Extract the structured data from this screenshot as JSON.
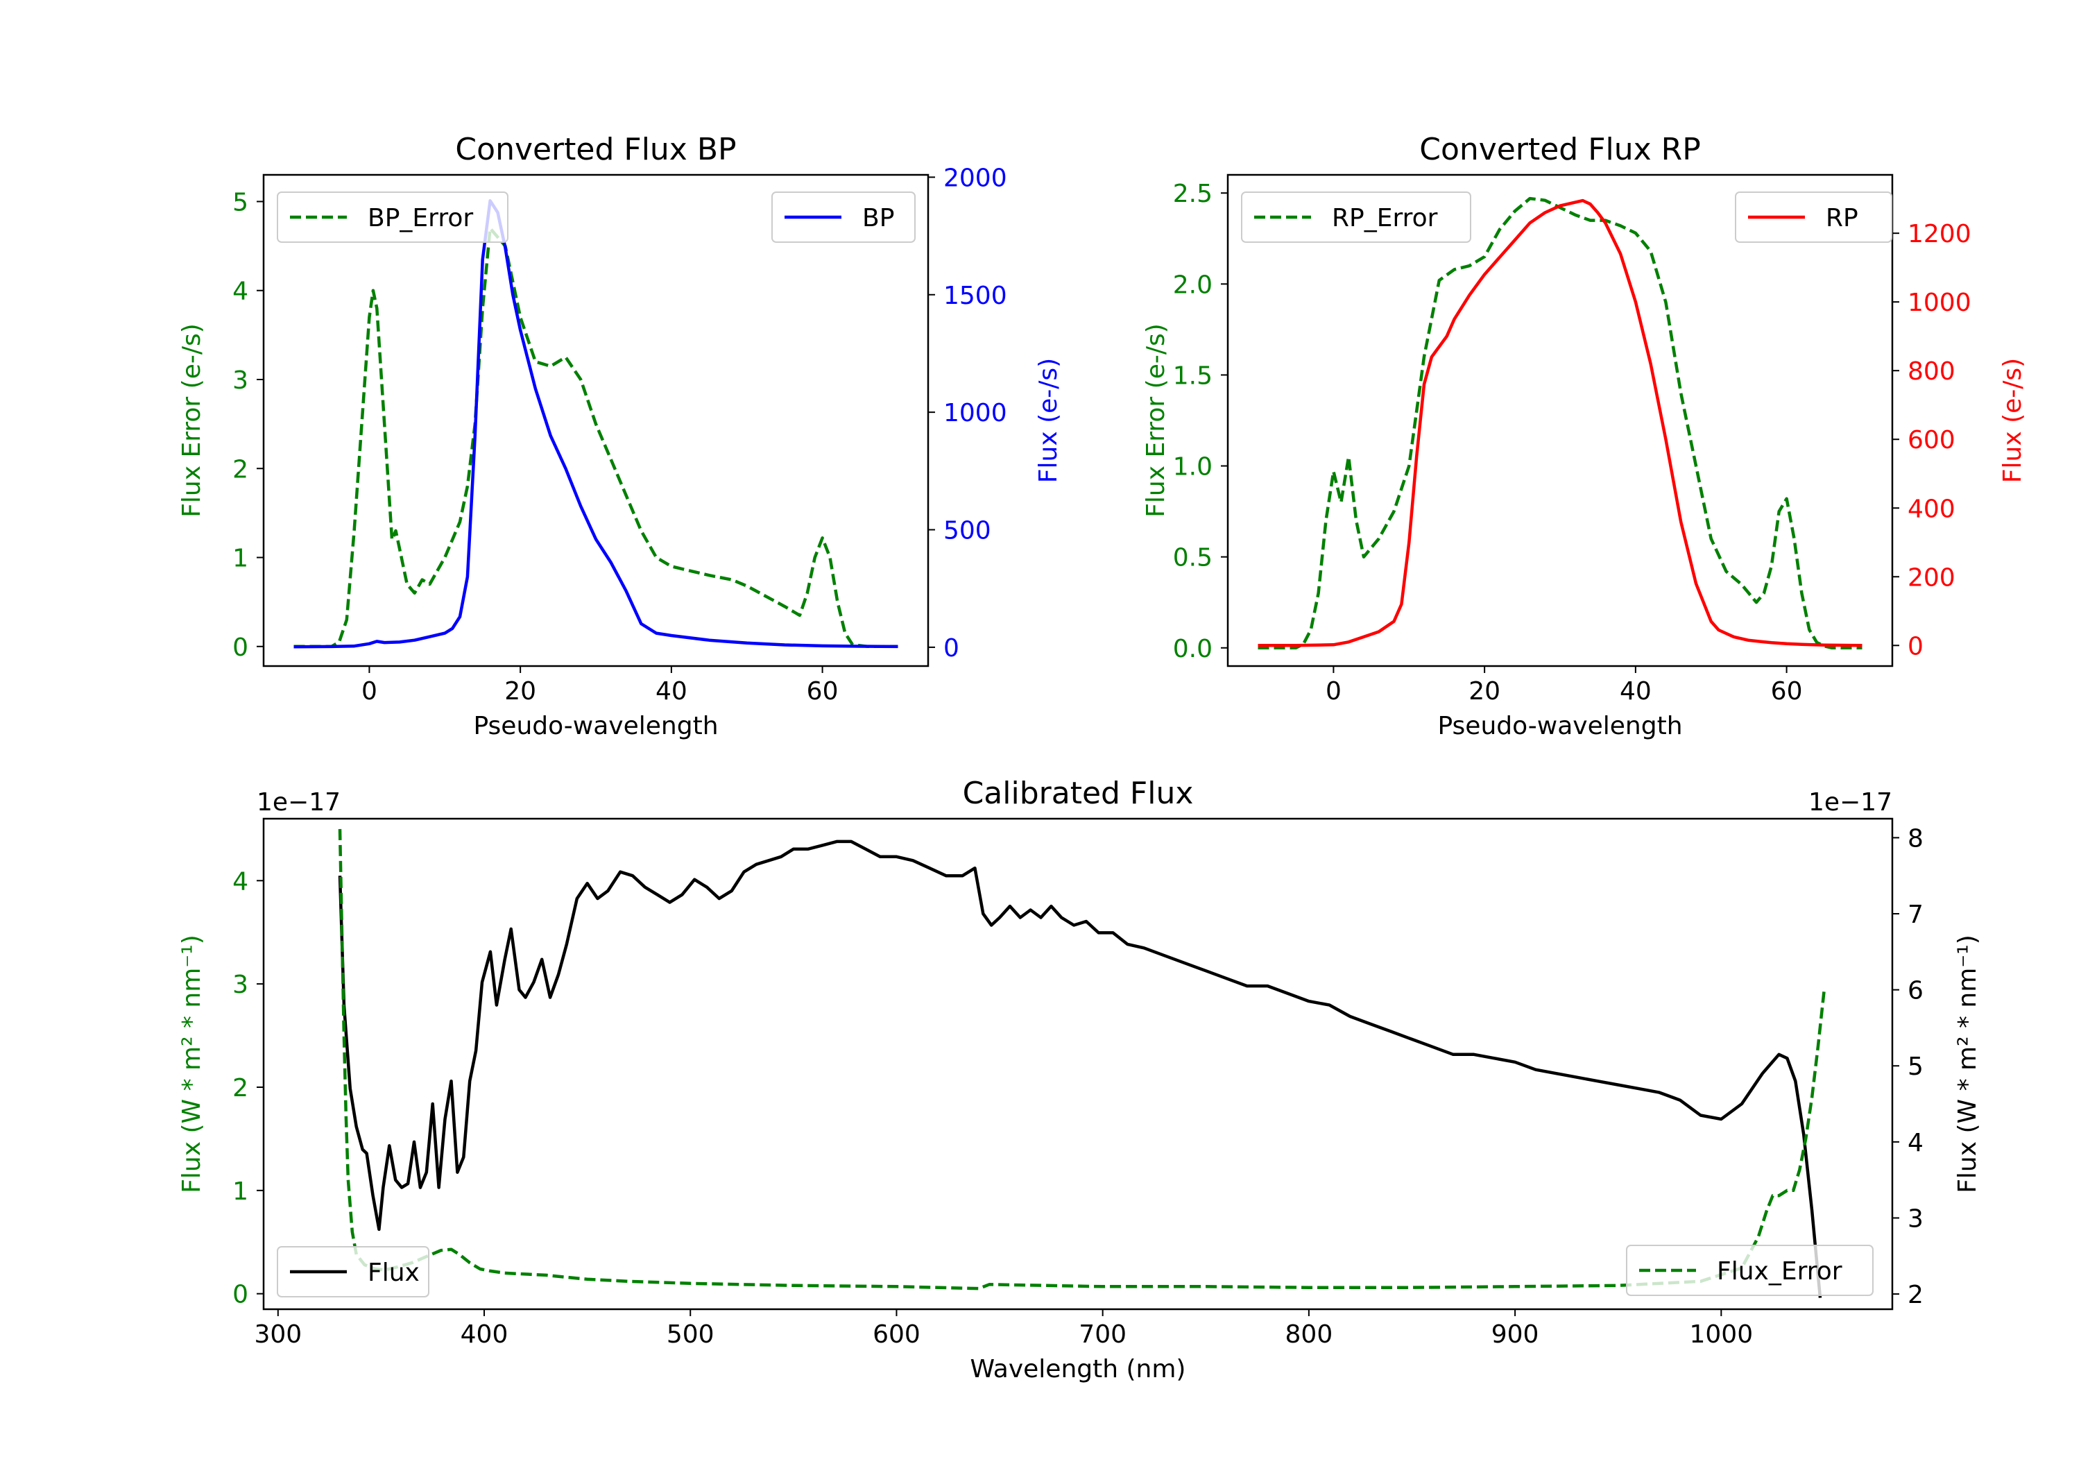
{
  "colors": {
    "bp": "#0000ff",
    "rp": "#ff0000",
    "error": "#008000",
    "calib": "#000000"
  },
  "chart_data": [
    {
      "type": "line",
      "title": "Converted Flux BP",
      "xlabel": "Pseudo-wavelength",
      "xlim": [
        -14,
        74
      ],
      "xticks": [
        0,
        20,
        40,
        60
      ],
      "y_left": {
        "label": "Flux Error (e-/s)",
        "lim": [
          -0.22,
          5.3
        ],
        "ticks": [
          0,
          1,
          2,
          3,
          4,
          5
        ],
        "color": "#008000"
      },
      "y_right": {
        "label": "Flux (e-/s)",
        "lim": [
          -80,
          2010
        ],
        "ticks": [
          0,
          500,
          1000,
          1500,
          2000
        ],
        "color": "#0000ff"
      },
      "series": [
        {
          "name": "BP_Error",
          "axis": "left",
          "style": "dashed",
          "color": "#008000",
          "x": [
            -10,
            -5,
            -4,
            -3,
            -2,
            -1,
            0,
            0.5,
            1,
            2,
            3,
            3.5,
            4,
            5,
            6,
            7,
            8,
            10,
            12,
            13,
            14,
            15,
            16,
            18,
            20,
            22,
            24,
            26,
            28,
            30,
            32,
            34,
            36,
            38,
            40,
            45,
            48,
            50,
            55,
            57,
            58,
            59,
            60,
            61,
            62,
            63,
            64,
            66,
            68,
            70
          ],
          "values": [
            0,
            0,
            0.05,
            0.3,
            1.3,
            2.5,
            3.7,
            4.0,
            3.8,
            2.5,
            1.2,
            1.3,
            1.1,
            0.7,
            0.6,
            0.75,
            0.7,
            1.0,
            1.4,
            1.8,
            2.5,
            3.8,
            4.7,
            4.5,
            3.7,
            3.2,
            3.15,
            3.25,
            3.0,
            2.5,
            2.1,
            1.7,
            1.3,
            1.0,
            0.9,
            0.8,
            0.75,
            0.68,
            0.45,
            0.35,
            0.6,
            1.0,
            1.22,
            1.0,
            0.5,
            0.15,
            0.02,
            0,
            0,
            0
          ]
        },
        {
          "name": "BP",
          "axis": "right",
          "style": "solid",
          "color": "#0000ff",
          "x": [
            -10,
            -5,
            -2,
            0,
            1,
            2,
            4,
            6,
            8,
            10,
            11,
            12,
            13,
            14,
            15,
            16,
            17,
            18,
            19,
            20,
            22,
            24,
            26,
            28,
            30,
            32,
            34,
            35,
            36,
            38,
            40,
            45,
            50,
            55,
            60,
            65,
            70
          ],
          "values": [
            2,
            3,
            5,
            15,
            25,
            20,
            22,
            30,
            45,
            60,
            80,
            130,
            300,
            900,
            1650,
            1900,
            1850,
            1700,
            1500,
            1350,
            1100,
            900,
            760,
            600,
            460,
            360,
            240,
            170,
            100,
            60,
            50,
            30,
            18,
            10,
            6,
            4,
            3
          ]
        }
      ]
    },
    {
      "type": "line",
      "title": "Converted Flux RP",
      "xlabel": "Pseudo-wavelength",
      "xlim": [
        -14,
        74
      ],
      "xticks": [
        0,
        20,
        40,
        60
      ],
      "y_left": {
        "label": "Flux Error (e-/s)",
        "lim": [
          -0.1,
          2.6
        ],
        "ticks": [
          0.0,
          0.5,
          1.0,
          1.5,
          2.0,
          2.5
        ],
        "color": "#008000"
      },
      "y_right": {
        "label": "Flux (e-/s)",
        "lim": [
          -60,
          1370
        ],
        "ticks": [
          0,
          200,
          400,
          600,
          800,
          1000,
          1200
        ],
        "color": "#ff0000"
      },
      "series": [
        {
          "name": "RP_Error",
          "axis": "left",
          "style": "dashed",
          "color": "#008000",
          "x": [
            -10,
            -5,
            -4,
            -3,
            -2,
            -1,
            0,
            1,
            2,
            3,
            4,
            5,
            6,
            8,
            10,
            12,
            14,
            16,
            18,
            20,
            22,
            24,
            26,
            28,
            30,
            32,
            34,
            36,
            38,
            40,
            42,
            44,
            46,
            48,
            50,
            52,
            54,
            55,
            56,
            57,
            58,
            59,
            60,
            61,
            62,
            63,
            64,
            65,
            66,
            68,
            70
          ],
          "values": [
            0,
            0,
            0.02,
            0.1,
            0.3,
            0.7,
            0.97,
            0.8,
            1.05,
            0.7,
            0.5,
            0.55,
            0.6,
            0.75,
            1.0,
            1.6,
            2.02,
            2.08,
            2.1,
            2.15,
            2.3,
            2.4,
            2.47,
            2.46,
            2.42,
            2.38,
            2.35,
            2.35,
            2.32,
            2.28,
            2.18,
            1.9,
            1.4,
            1.0,
            0.6,
            0.42,
            0.35,
            0.3,
            0.25,
            0.3,
            0.45,
            0.75,
            0.82,
            0.6,
            0.3,
            0.1,
            0.03,
            0.01,
            0,
            0,
            0
          ]
        },
        {
          "name": "RP",
          "axis": "right",
          "style": "solid",
          "color": "#ff0000",
          "x": [
            -10,
            -5,
            0,
            2,
            4,
            6,
            8,
            9,
            10,
            11,
            12,
            13,
            14,
            15,
            16,
            18,
            20,
            22,
            24,
            26,
            28,
            30,
            32,
            33,
            34,
            35,
            36,
            38,
            40,
            42,
            44,
            46,
            48,
            50,
            51,
            52,
            53,
            55,
            58,
            60,
            62,
            65,
            70
          ],
          "values": [
            0,
            0,
            2,
            10,
            25,
            40,
            70,
            120,
            300,
            550,
            760,
            840,
            870,
            900,
            950,
            1020,
            1080,
            1130,
            1180,
            1230,
            1260,
            1280,
            1290,
            1295,
            1285,
            1260,
            1230,
            1140,
            1000,
            820,
            600,
            360,
            180,
            70,
            45,
            35,
            25,
            15,
            8,
            5,
            3,
            1,
            0
          ]
        }
      ]
    },
    {
      "type": "line",
      "title": "Calibrated Flux",
      "xlabel": "Wavelength (nm)",
      "xlim": [
        293,
        1083
      ],
      "xticks": [
        300,
        400,
        500,
        600,
        700,
        800,
        900,
        1000
      ],
      "y_left": {
        "label": "Flux (W * m² * nm⁻¹)",
        "lim": [
          -0.15,
          4.6
        ],
        "ticks": [
          0,
          1,
          2,
          3,
          4
        ],
        "color": "#008000",
        "offset_text": "1e−17"
      },
      "y_right": {
        "label": "Flux (W * m² * nm⁻¹)",
        "lim": [
          1.8,
          8.25
        ],
        "ticks": [
          2,
          3,
          4,
          5,
          6,
          7,
          8
        ],
        "color": "#000000",
        "offset_text": "1e−17"
      },
      "series": [
        {
          "name": "Flux",
          "axis": "right",
          "style": "solid",
          "color": "#000000",
          "x": [
            330,
            332,
            335,
            338,
            341,
            343,
            346,
            349,
            351,
            354,
            357,
            360,
            363,
            366,
            369,
            372,
            375,
            378,
            381,
            384,
            387,
            390,
            393,
            396,
            399,
            403,
            406,
            410,
            413,
            417,
            420,
            424,
            428,
            432,
            436,
            440,
            445,
            450,
            455,
            460,
            466,
            472,
            478,
            484,
            490,
            496,
            502,
            508,
            514,
            520,
            526,
            532,
            538,
            544,
            550,
            557,
            564,
            571,
            578,
            585,
            592,
            600,
            608,
            616,
            624,
            632,
            638,
            642,
            646,
            650,
            655,
            660,
            665,
            670,
            675,
            680,
            686,
            692,
            698,
            705,
            712,
            720,
            730,
            740,
            750,
            760,
            770,
            780,
            790,
            800,
            810,
            820,
            830,
            840,
            850,
            860,
            870,
            880,
            890,
            900,
            910,
            920,
            930,
            940,
            950,
            960,
            970,
            980,
            990,
            1000,
            1010,
            1020,
            1028,
            1032,
            1036,
            1040,
            1044,
            1048
          ],
          "values": [
            7.5,
            5.8,
            4.7,
            4.2,
            3.9,
            3.85,
            3.3,
            2.85,
            3.4,
            3.95,
            3.5,
            3.4,
            3.45,
            4.0,
            3.4,
            3.6,
            4.5,
            3.4,
            4.3,
            4.8,
            3.6,
            3.8,
            4.8,
            5.2,
            6.1,
            6.5,
            5.8,
            6.4,
            6.8,
            6.0,
            5.9,
            6.1,
            6.4,
            5.9,
            6.2,
            6.6,
            7.2,
            7.4,
            7.2,
            7.3,
            7.55,
            7.5,
            7.35,
            7.25,
            7.15,
            7.25,
            7.45,
            7.35,
            7.2,
            7.3,
            7.55,
            7.65,
            7.7,
            7.75,
            7.85,
            7.85,
            7.9,
            7.95,
            7.95,
            7.85,
            7.75,
            7.75,
            7.7,
            7.6,
            7.5,
            7.5,
            7.6,
            7.0,
            6.85,
            6.95,
            7.1,
            6.95,
            7.05,
            6.95,
            7.1,
            6.95,
            6.85,
            6.9,
            6.75,
            6.75,
            6.6,
            6.55,
            6.45,
            6.35,
            6.25,
            6.15,
            6.05,
            6.05,
            5.95,
            5.85,
            5.8,
            5.65,
            5.55,
            5.45,
            5.35,
            5.25,
            5.15,
            5.15,
            5.1,
            5.05,
            4.95,
            4.9,
            4.85,
            4.8,
            4.75,
            4.7,
            4.65,
            4.55,
            4.35,
            4.3,
            4.5,
            4.9,
            5.15,
            5.1,
            4.8,
            4.1,
            3.1,
            1.95
          ]
        },
        {
          "name": "Flux_Error",
          "axis": "left",
          "style": "dashed",
          "color": "#008000",
          "x": [
            330,
            331,
            332,
            333,
            334,
            336,
            338,
            342,
            347,
            352,
            358,
            365,
            372,
            379,
            384,
            388,
            393,
            398,
            403,
            410,
            420,
            430,
            440,
            450,
            470,
            500,
            550,
            600,
            640,
            645,
            700,
            750,
            800,
            850,
            900,
            950,
            990,
            1010,
            1018,
            1022,
            1025,
            1028,
            1032,
            1035,
            1038,
            1041,
            1044,
            1047,
            1050
          ],
          "values": [
            4.5,
            3.5,
            2.5,
            1.7,
            1.1,
            0.6,
            0.38,
            0.28,
            0.24,
            0.23,
            0.26,
            0.3,
            0.36,
            0.42,
            0.43,
            0.38,
            0.3,
            0.24,
            0.22,
            0.2,
            0.19,
            0.18,
            0.16,
            0.14,
            0.12,
            0.1,
            0.08,
            0.07,
            0.05,
            0.09,
            0.07,
            0.07,
            0.06,
            0.06,
            0.07,
            0.08,
            0.12,
            0.25,
            0.55,
            0.8,
            0.95,
            0.95,
            1.0,
            1.0,
            1.2,
            1.5,
            1.9,
            2.4,
            2.95
          ]
        }
      ]
    }
  ]
}
